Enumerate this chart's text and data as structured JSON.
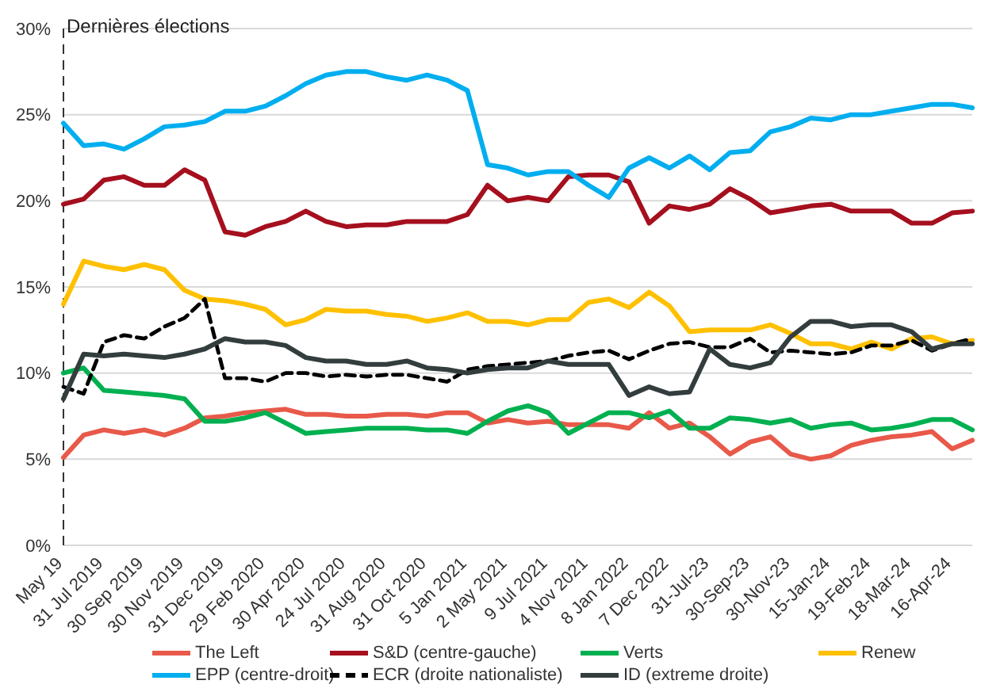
{
  "chart_data": {
    "type": "line",
    "categories": [
      "May 19",
      null,
      "31 Jul 2019",
      null,
      "30 Sep 2019",
      null,
      "30 Nov 2019",
      null,
      "31 Dec 2019",
      null,
      "29 Feb 2020",
      null,
      "30 Apr 2020",
      null,
      "24 Jul 2020",
      null,
      "31 Aug 2020",
      null,
      "31 Oct 2020",
      null,
      "5 Jan 2021",
      null,
      "2 May 2021",
      null,
      "9 Jul 2021",
      null,
      "4 Nov 2021",
      null,
      "8 Jan 2022",
      null,
      "7 Dec 2022",
      null,
      "31-Jul-23",
      null,
      "30-Sep-23",
      null,
      "30-Nov-23",
      null,
      "15-Jan-24",
      null,
      "19-Feb-24",
      null,
      "18-Mar-24",
      null,
      "16-Apr-24",
      null
    ],
    "ylim": [
      0,
      30
    ],
    "yticks": [
      {
        "value": 0,
        "label": "0%"
      },
      {
        "value": 5,
        "label": "5%"
      },
      {
        "value": 10,
        "label": "10%"
      },
      {
        "value": 15,
        "label": "15%"
      },
      {
        "value": 20,
        "label": "20%"
      },
      {
        "value": 25,
        "label": "25%"
      },
      {
        "value": 30,
        "label": "30%"
      }
    ],
    "grid": "y",
    "legend": "bottom",
    "marker": "none",
    "ref_lines": [
      {
        "axis": "x",
        "value": "May 19",
        "label": "Dernières élections",
        "color": "#333333",
        "line_style": "dashed"
      }
    ],
    "series": [
      {
        "name": "The Left",
        "color": "#e8594a",
        "values": [
          5.1,
          6.4,
          6.7,
          6.5,
          6.7,
          6.4,
          6.8,
          7.4,
          7.5,
          7.7,
          7.8,
          7.9,
          7.6,
          7.6,
          7.5,
          7.5,
          7.6,
          7.6,
          7.5,
          7.7,
          7.7,
          7.1,
          7.3,
          7.1,
          7.2,
          7.0,
          7.0,
          7.0,
          6.8,
          7.7,
          6.8,
          7.1,
          6.3,
          5.3,
          6.0,
          6.3,
          5.3,
          5.0,
          5.2,
          5.8,
          6.1,
          6.3,
          6.4,
          6.6,
          5.6,
          6.1
        ]
      },
      {
        "name": "S&D (centre-gauche)",
        "color": "#a50f1e",
        "values": [
          19.8,
          20.1,
          21.2,
          21.4,
          20.9,
          20.9,
          21.8,
          21.2,
          18.2,
          18.0,
          18.5,
          18.8,
          19.4,
          18.8,
          18.5,
          18.6,
          18.6,
          18.8,
          18.8,
          18.8,
          19.2,
          20.9,
          20.0,
          20.2,
          20.0,
          21.4,
          21.5,
          21.5,
          21.1,
          18.7,
          19.7,
          19.5,
          19.8,
          20.7,
          20.1,
          19.3,
          19.5,
          19.7,
          19.8,
          19.4,
          19.4,
          19.4,
          18.7,
          18.7,
          19.3,
          19.4
        ]
      },
      {
        "name": "Verts",
        "color": "#00b050",
        "values": [
          10.0,
          10.3,
          9.0,
          8.9,
          8.8,
          8.7,
          8.5,
          7.2,
          7.2,
          7.4,
          7.7,
          7.1,
          6.5,
          6.6,
          6.7,
          6.8,
          6.8,
          6.8,
          6.7,
          6.7,
          6.5,
          7.2,
          7.8,
          8.1,
          7.7,
          6.5,
          7.1,
          7.7,
          7.7,
          7.4,
          7.8,
          6.8,
          6.8,
          7.4,
          7.3,
          7.1,
          7.3,
          6.8,
          7.0,
          7.1,
          6.7,
          6.8,
          7.0,
          7.3,
          7.3,
          6.7
        ]
      },
      {
        "name": "Renew",
        "color": "#ffc000",
        "values": [
          14.0,
          16.5,
          16.2,
          16.0,
          16.3,
          16.0,
          14.8,
          14.3,
          14.2,
          14.0,
          13.7,
          12.8,
          13.1,
          13.7,
          13.6,
          13.6,
          13.4,
          13.3,
          13.0,
          13.2,
          13.5,
          13.0,
          13.0,
          12.8,
          13.1,
          13.1,
          14.1,
          14.3,
          13.8,
          14.7,
          13.9,
          12.4,
          12.5,
          12.5,
          12.5,
          12.8,
          12.3,
          11.7,
          11.7,
          11.4,
          11.8,
          11.4,
          12.0,
          12.1,
          11.7,
          11.9
        ]
      },
      {
        "name": "EPP (centre-droit)",
        "color": "#00aeef",
        "values": [
          24.5,
          23.2,
          23.3,
          23.0,
          23.6,
          24.3,
          24.4,
          24.6,
          25.2,
          25.2,
          25.5,
          26.1,
          26.8,
          27.3,
          27.5,
          27.5,
          27.2,
          27.0,
          27.3,
          27.0,
          26.4,
          22.1,
          21.9,
          21.5,
          21.7,
          21.7,
          20.9,
          20.2,
          21.9,
          22.5,
          21.9,
          22.6,
          21.8,
          22.8,
          22.9,
          24.0,
          24.3,
          24.8,
          24.7,
          25.0,
          25.0,
          25.2,
          25.4,
          25.6,
          25.6,
          25.4
        ]
      },
      {
        "name": "ECR (droite nationaliste)",
        "color": "#000000",
        "line_style": "dashed",
        "values": [
          9.2,
          8.8,
          11.8,
          12.2,
          12.0,
          12.7,
          13.2,
          14.3,
          9.7,
          9.7,
          9.5,
          10.0,
          10.0,
          9.8,
          9.9,
          9.8,
          9.9,
          9.9,
          9.7,
          9.5,
          10.2,
          10.4,
          10.5,
          10.6,
          10.7,
          11.0,
          11.2,
          11.3,
          10.8,
          11.3,
          11.7,
          11.8,
          11.5,
          11.5,
          12.0,
          11.2,
          11.3,
          11.2,
          11.1,
          11.2,
          11.6,
          11.6,
          11.9,
          11.3,
          11.7,
          12.0
        ]
      },
      {
        "name": "ID (extreme droite)",
        "color": "#333d3d",
        "values": [
          8.5,
          11.1,
          11.0,
          11.1,
          11.0,
          10.9,
          11.1,
          11.4,
          12.0,
          11.8,
          11.8,
          11.6,
          10.9,
          10.7,
          10.7,
          10.5,
          10.5,
          10.7,
          10.3,
          10.2,
          10.0,
          10.2,
          10.3,
          10.3,
          10.7,
          10.5,
          10.5,
          10.5,
          8.7,
          9.2,
          8.8,
          8.9,
          11.4,
          10.5,
          10.3,
          10.6,
          12.1,
          13.0,
          13.0,
          12.7,
          12.8,
          12.8,
          12.4,
          11.4,
          11.7,
          11.7
        ]
      }
    ]
  }
}
